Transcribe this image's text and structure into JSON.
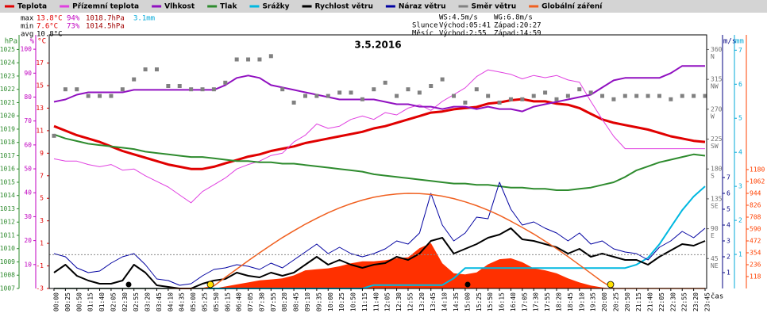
{
  "chart_data": {
    "type": "line",
    "title": "3.5.2016",
    "x_label": "čas",
    "categories": [
      "00:00",
      "00:25",
      "00:50",
      "01:15",
      "01:40",
      "02:05",
      "02:30",
      "02:55",
      "03:20",
      "03:45",
      "04:10",
      "04:35",
      "05:00",
      "05:25",
      "05:50",
      "06:15",
      "06:40",
      "07:05",
      "07:30",
      "07:55",
      "08:20",
      "08:45",
      "09:10",
      "09:35",
      "10:00",
      "10:25",
      "10:50",
      "11:15",
      "11:40",
      "12:05",
      "12:30",
      "12:55",
      "13:20",
      "13:45",
      "14:10",
      "14:35",
      "15:00",
      "15:25",
      "15:50",
      "16:15",
      "16:40",
      "17:05",
      "17:30",
      "17:55",
      "18:20",
      "18:45",
      "19:10",
      "19:35",
      "20:00",
      "20:25",
      "20:50",
      "21:15",
      "21:40",
      "22:05",
      "22:30",
      "22:55",
      "23:20",
      "23:45"
    ],
    "axes": {
      "press": {
        "label": "hPa",
        "color": "#2e8b2e",
        "lim": [
          1007,
          1026.1
        ],
        "ticks": [
          1007,
          1008,
          1009,
          1010,
          1011,
          1012,
          1013,
          1014,
          1015,
          1016,
          1017,
          1018,
          1019,
          1020,
          1021,
          1022,
          1023,
          1024,
          1025
        ]
      },
      "hum": {
        "label": "%",
        "color": "#c000c0",
        "lim": [
          0,
          106
        ],
        "ticks": [
          10,
          20,
          30,
          40,
          50,
          60,
          70,
          80,
          90,
          100
        ]
      },
      "temp": {
        "label": "°C",
        "color": "#e00000",
        "lim": [
          -3,
          19.5
        ],
        "ticks": [
          -3,
          -1,
          1,
          3,
          5,
          7,
          9,
          11,
          13,
          15,
          17
        ]
      },
      "dir": {
        "color": "#707070",
        "lim": [
          0,
          382
        ],
        "ticks": [
          45,
          90,
          135,
          180,
          225,
          270,
          315,
          360
        ],
        "compass": [
          "NE",
          "E",
          "SE",
          "S",
          "SW",
          "W",
          "NW",
          "N"
        ]
      },
      "wind": {
        "label": "m/s",
        "color": "#000080",
        "lim": [
          0,
          16
        ],
        "ticks": [
          1,
          2,
          3,
          4,
          5,
          6,
          7
        ]
      },
      "rain": {
        "label": "mm",
        "color": "#00a8d8",
        "lim": [
          0,
          7.45
        ],
        "ticks": [
          1,
          2,
          3,
          4,
          5,
          6,
          7
        ]
      },
      "rad": {
        "color": "#ff4000",
        "lim": [
          0,
          2517
        ],
        "ticks": [
          118,
          236,
          354,
          472,
          590,
          708,
          826,
          944,
          1062,
          1180
        ]
      }
    },
    "zero_line": 0,
    "series": [
      {
        "name": "Teplota",
        "color": "#e00000",
        "axis": "temp",
        "width": 3,
        "values": [
          11.4,
          11.0,
          10.6,
          10.3,
          10.0,
          9.6,
          9.2,
          8.9,
          8.6,
          8.3,
          8.0,
          7.8,
          7.6,
          7.6,
          7.8,
          8.1,
          8.4,
          8.7,
          8.9,
          9.2,
          9.4,
          9.6,
          9.9,
          10.1,
          10.3,
          10.5,
          10.7,
          10.9,
          11.2,
          11.4,
          11.7,
          12.0,
          12.3,
          12.6,
          12.7,
          12.9,
          13.0,
          13.1,
          13.4,
          13.5,
          13.7,
          13.8,
          13.6,
          13.6,
          13.4,
          13.3,
          13.0,
          12.5,
          12.0,
          11.7,
          11.5,
          11.3,
          11.1,
          10.8,
          10.5,
          10.3,
          10.1,
          10.0
        ]
      },
      {
        "name": "Přízemní teplota",
        "color": "#e040e0",
        "axis": "temp",
        "width": 1,
        "values": [
          8.5,
          8.3,
          8.3,
          8.0,
          7.8,
          8.0,
          7.5,
          7.6,
          7.0,
          6.5,
          6.0,
          5.3,
          4.6,
          5.6,
          6.2,
          6.8,
          7.6,
          8.0,
          8.3,
          8.8,
          9.0,
          10.0,
          10.6,
          11.6,
          11.2,
          11.4,
          12.0,
          12.3,
          12.0,
          12.6,
          12.4,
          13.0,
          13.3,
          12.8,
          13.6,
          14.2,
          14.8,
          15.8,
          16.4,
          16.2,
          16.0,
          15.6,
          15.9,
          15.7,
          15.9,
          15.5,
          15.3,
          13.6,
          12.0,
          10.5,
          9.4,
          9.4,
          9.4,
          9.4,
          9.4,
          9.4,
          9.4,
          9.4
        ]
      },
      {
        "name": "Vlhkost",
        "color": "#9010c0",
        "axis": "hum",
        "width": 2,
        "values": [
          78,
          79,
          81,
          82,
          82,
          82,
          82,
          83,
          83,
          83,
          83,
          83,
          83,
          83,
          83,
          85,
          88,
          89,
          88,
          85,
          84,
          83,
          82,
          81,
          80,
          79,
          79,
          79,
          79,
          78,
          77,
          77,
          76,
          76,
          75,
          76,
          76,
          75,
          76,
          75,
          75,
          74,
          76,
          77,
          78,
          79,
          80,
          81,
          84,
          87,
          88,
          88,
          88,
          88,
          90,
          93,
          93,
          93
        ]
      },
      {
        "name": "Tlak",
        "color": "#2e8b2e",
        "axis": "press",
        "width": 2,
        "values": [
          1018.6,
          1018.3,
          1018.1,
          1017.9,
          1017.8,
          1017.7,
          1017.6,
          1017.5,
          1017.3,
          1017.2,
          1017.1,
          1017.0,
          1016.9,
          1016.9,
          1016.8,
          1016.7,
          1016.6,
          1016.6,
          1016.5,
          1016.5,
          1016.4,
          1016.4,
          1016.3,
          1016.2,
          1016.1,
          1016.0,
          1015.9,
          1015.8,
          1015.6,
          1015.5,
          1015.4,
          1015.3,
          1015.2,
          1015.1,
          1015.0,
          1014.9,
          1014.9,
          1014.8,
          1014.8,
          1014.7,
          1014.6,
          1014.6,
          1014.5,
          1014.5,
          1014.4,
          1014.4,
          1014.5,
          1014.6,
          1014.8,
          1015.0,
          1015.4,
          1015.9,
          1016.2,
          1016.5,
          1016.7,
          1016.9,
          1017.1,
          1017.0
        ]
      },
      {
        "name": "Srážky",
        "color": "#00b8e0",
        "axis": "rain",
        "width": 2,
        "values": [
          0,
          0,
          0,
          0,
          0,
          0,
          0,
          0,
          0,
          0,
          0,
          0,
          0,
          0,
          0,
          0,
          0,
          0,
          0,
          0,
          0,
          0,
          0,
          0,
          0,
          0,
          0,
          0,
          0.1,
          0.1,
          0.1,
          0.1,
          0.1,
          0.1,
          0.1,
          0.3,
          0.6,
          0.6,
          0.6,
          0.6,
          0.6,
          0.6,
          0.6,
          0.6,
          0.6,
          0.6,
          0.6,
          0.6,
          0.6,
          0.6,
          0.6,
          0.7,
          0.9,
          1.3,
          1.8,
          2.3,
          2.7,
          3.0
        ]
      },
      {
        "name": "Rychlost větru",
        "color": "#000000",
        "axis": "wind",
        "width": 2,
        "values": [
          1.0,
          1.5,
          0.8,
          0.5,
          0.3,
          0.3,
          0.5,
          1.5,
          1.0,
          0.2,
          0.1,
          0.0,
          0.0,
          0.3,
          0.5,
          0.6,
          1.0,
          0.8,
          0.7,
          1.0,
          0.8,
          1.0,
          1.5,
          2.0,
          1.5,
          1.8,
          1.5,
          1.3,
          1.5,
          1.6,
          2.0,
          1.8,
          2.2,
          3.0,
          3.2,
          2.2,
          2.5,
          2.8,
          3.2,
          3.4,
          3.8,
          3.1,
          3.0,
          2.8,
          2.6,
          2.2,
          2.5,
          2.0,
          2.2,
          2.0,
          1.8,
          1.8,
          1.5,
          2.0,
          2.4,
          2.8,
          2.7,
          3.0
        ]
      },
      {
        "name": "Náraz větru",
        "color": "#0000a0",
        "axis": "wind",
        "width": 1,
        "values": [
          2.2,
          2.0,
          1.3,
          1.0,
          1.1,
          1.6,
          2.0,
          2.2,
          1.5,
          0.6,
          0.5,
          0.2,
          0.3,
          0.8,
          1.2,
          1.3,
          1.5,
          1.4,
          1.2,
          1.6,
          1.3,
          1.8,
          2.3,
          2.8,
          2.2,
          2.6,
          2.2,
          2.0,
          2.2,
          2.5,
          3.0,
          2.8,
          3.5,
          6.0,
          4.0,
          3.0,
          3.5,
          4.5,
          4.4,
          6.7,
          5.0,
          4.0,
          4.2,
          3.8,
          3.5,
          3.0,
          3.5,
          2.8,
          3.0,
          2.5,
          2.3,
          2.2,
          1.8,
          2.6,
          3.0,
          3.6,
          3.2,
          3.8
        ]
      },
      {
        "name": "Směr větru",
        "color": "#808080",
        "axis": "dir",
        "type": "scatter",
        "values": [
          230,
          300,
          300,
          290,
          290,
          290,
          300,
          315,
          330,
          330,
          305,
          305,
          300,
          300,
          300,
          310,
          345,
          345,
          345,
          350,
          300,
          280,
          290,
          290,
          290,
          295,
          295,
          285,
          300,
          310,
          290,
          300,
          295,
          305,
          315,
          290,
          280,
          300,
          290,
          280,
          285,
          285,
          290,
          295,
          285,
          290,
          300,
          295,
          290,
          285,
          290,
          290,
          290,
          290,
          285,
          290,
          290,
          290
        ]
      },
      {
        "name": "Globální záření",
        "color": "#f06020",
        "axis": "rad",
        "width": 1.5,
        "values": [
          0,
          0,
          0,
          0,
          0,
          0,
          0,
          0,
          0,
          0,
          0,
          0,
          0,
          0,
          25,
          110,
          193,
          275,
          354,
          430,
          505,
          573,
          638,
          697,
          752,
          800,
          842,
          877,
          905,
          925,
          938,
          944,
          942,
          933,
          916,
          892,
          860,
          822,
          777,
          726,
          668,
          606,
          540,
          469,
          395,
          316,
          234,
          151,
          67,
          0,
          0,
          0,
          0,
          0,
          0,
          0,
          0,
          0
        ]
      },
      {
        "color": "#ff3000",
        "axis": "rad",
        "type": "area",
        "values": [
          0,
          0,
          0,
          0,
          0,
          0,
          0,
          0,
          0,
          0,
          0,
          0,
          0,
          0,
          0,
          20,
          40,
          60,
          80,
          90,
          100,
          130,
          180,
          190,
          200,
          220,
          250,
          270,
          270,
          280,
          300,
          310,
          400,
          450,
          250,
          150,
          140,
          160,
          240,
          290,
          300,
          260,
          200,
          180,
          150,
          100,
          60,
          30,
          10,
          0,
          0,
          0,
          0,
          0,
          0,
          0,
          0,
          0
        ]
      }
    ]
  },
  "stats": [
    {
      "label": "max",
      "temp": "13.8°C",
      "hum": "94%",
      "press": "1018.7hPa",
      "rain": "3.1mm"
    },
    {
      "label": "min",
      "temp": "7.6°C",
      "hum": "73%",
      "press": "1014.5hPa"
    },
    {
      "label": "avg",
      "temp": "10.8°C"
    }
  ],
  "info": {
    "ws": "WS:4.5m/s",
    "wg": "WG:6.8m/s",
    "sun": "Slunce",
    "sunrise": "Východ:05:41",
    "sunset": "Západ:20:27",
    "moon": "Měsíc",
    "moonrise": "Východ:2:55",
    "moonset": "Západ:14:59"
  }
}
